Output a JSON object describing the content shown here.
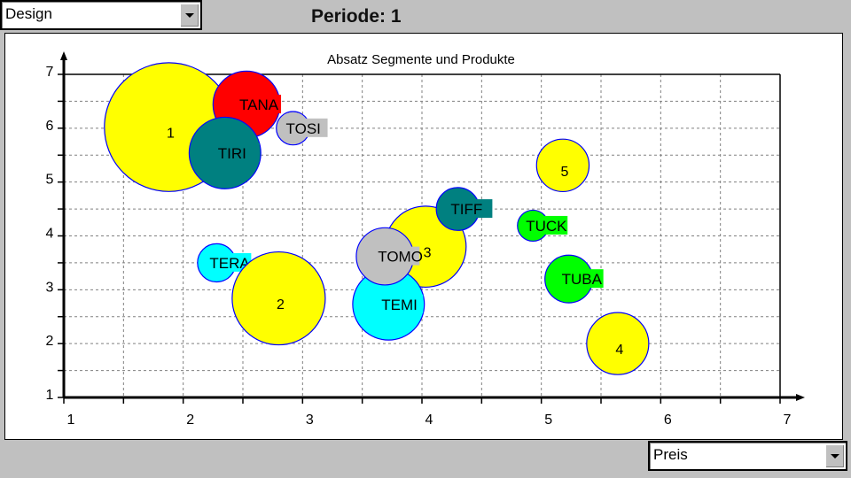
{
  "top_select": {
    "value": "Design"
  },
  "period_title": "Periode: 1",
  "bottom_select": {
    "value": "Preis"
  },
  "chart_data": {
    "type": "scatter",
    "subtype": "bubble",
    "title": "Absatz Segmente und Produkte",
    "xlabel": "",
    "ylabel": "",
    "xlim": [
      1,
      7
    ],
    "ylim": [
      1,
      7
    ],
    "x_ticks": [
      "1",
      "2",
      "3",
      "4",
      "5",
      "6",
      "7"
    ],
    "y_ticks": [
      "1",
      "2",
      "3",
      "4",
      "5",
      "6",
      "7"
    ],
    "grid": true,
    "points": [
      {
        "label": "1",
        "x": 1.88,
        "y": 6.02,
        "size": 0.54,
        "color": "#ffff00",
        "kind": "segment"
      },
      {
        "label": "TANA",
        "x": 2.53,
        "y": 6.44,
        "size": 0.28,
        "color": "#ff0000",
        "kind": "product"
      },
      {
        "label": "TIRI",
        "x": 2.35,
        "y": 5.54,
        "size": 0.3,
        "color": "#008080",
        "kind": "product"
      },
      {
        "label": "TOSI",
        "x": 2.92,
        "y": 6.0,
        "size": 0.14,
        "color": "#c0c0c0",
        "kind": "product"
      },
      {
        "label": "TERA",
        "x": 2.28,
        "y": 3.5,
        "size": 0.16,
        "color": "#00ffff",
        "kind": "product"
      },
      {
        "label": "2",
        "x": 2.8,
        "y": 2.84,
        "size": 0.39,
        "color": "#ffff00",
        "kind": "segment"
      },
      {
        "label": "3",
        "x": 4.03,
        "y": 3.8,
        "size": 0.34,
        "color": "#ffff00",
        "kind": "segment"
      },
      {
        "label": "TEMI",
        "x": 3.72,
        "y": 2.73,
        "size": 0.3,
        "color": "#00ffff",
        "kind": "product"
      },
      {
        "label": "TOMO",
        "x": 3.69,
        "y": 3.62,
        "size": 0.24,
        "color": "#c0c0c0",
        "kind": "product"
      },
      {
        "label": "TIFF",
        "x": 4.3,
        "y": 4.5,
        "size": 0.18,
        "color": "#008080",
        "kind": "product"
      },
      {
        "label": "5",
        "x": 5.18,
        "y": 5.31,
        "size": 0.22,
        "color": "#ffff00",
        "kind": "segment"
      },
      {
        "label": "TUCK",
        "x": 4.93,
        "y": 4.19,
        "size": 0.13,
        "color": "#00ff00",
        "kind": "product"
      },
      {
        "label": "TUBA",
        "x": 5.23,
        "y": 3.2,
        "size": 0.2,
        "color": "#00ff00",
        "kind": "product"
      },
      {
        "label": "4",
        "x": 5.64,
        "y": 2.0,
        "size": 0.26,
        "color": "#ffff00",
        "kind": "segment"
      }
    ]
  }
}
